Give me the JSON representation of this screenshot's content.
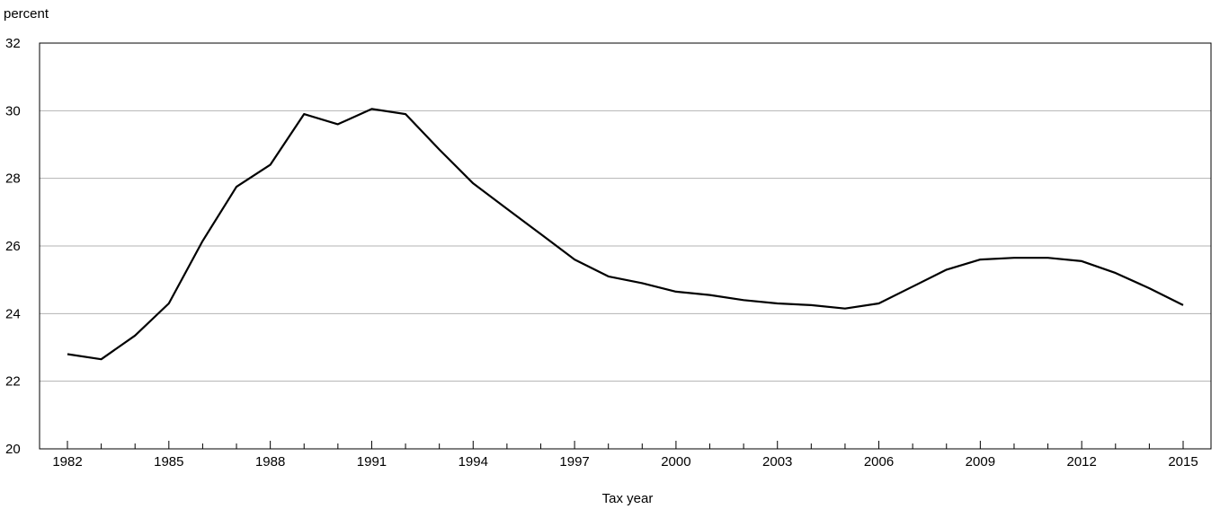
{
  "chart_data": {
    "type": "line",
    "title": "",
    "ylabel": "percent",
    "xlabel": "Tax year",
    "xlim": [
      1982,
      2015
    ],
    "ylim": [
      20,
      32
    ],
    "x_ticks": [
      1982,
      1985,
      1988,
      1991,
      1994,
      1997,
      2000,
      2003,
      2006,
      2009,
      2012,
      2015
    ],
    "y_ticks": [
      20,
      22,
      24,
      26,
      28,
      30,
      32
    ],
    "grid": "horizontal",
    "legend": "none",
    "line_color": "#000000",
    "grid_color": "#b3b3b3",
    "series": [
      {
        "x": [
          1982,
          1983,
          1984,
          1985,
          1986,
          1987,
          1988,
          1989,
          1990,
          1991,
          1992,
          1993,
          1994,
          1995,
          1996,
          1997,
          1998,
          1999,
          2000,
          2001,
          2002,
          2003,
          2004,
          2005,
          2006,
          2007,
          2008,
          2009,
          2010,
          2011,
          2012,
          2013,
          2014,
          2015
        ],
        "values": [
          22.8,
          22.65,
          23.35,
          24.3,
          26.15,
          27.75,
          28.4,
          29.9,
          29.6,
          30.05,
          29.9,
          28.85,
          27.85,
          27.1,
          26.35,
          25.6,
          25.1,
          24.9,
          24.65,
          24.55,
          24.4,
          24.3,
          24.25,
          24.15,
          24.3,
          24.8,
          25.3,
          25.6,
          25.65,
          25.65,
          25.55,
          25.2,
          24.75,
          24.25
        ]
      }
    ]
  }
}
